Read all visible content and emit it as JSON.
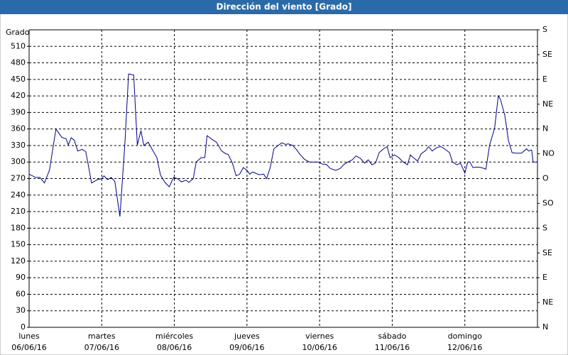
{
  "chart_data": {
    "type": "line",
    "title": "Dirección del viento [Grado]",
    "y_label": "Grado",
    "xlim": [
      0,
      7
    ],
    "xticks": [
      {
        "value": 0,
        "label": "lunes"
      },
      {
        "value": 1,
        "label": "martes"
      },
      {
        "value": 2,
        "label": "miércoles"
      },
      {
        "value": 3,
        "label": "jueves"
      },
      {
        "value": 4,
        "label": "viernes"
      },
      {
        "value": 5,
        "label": "sábado"
      },
      {
        "value": 6,
        "label": "domingo"
      }
    ],
    "xtick_dates": [
      "06/06/16",
      "07/06/16",
      "08/06/16",
      "09/06/16",
      "10/06/16",
      "11/06/16",
      "12/06/16"
    ],
    "ylim": [
      0,
      540
    ],
    "yticks": [
      0,
      30,
      60,
      90,
      120,
      150,
      180,
      210,
      240,
      270,
      300,
      330,
      360,
      390,
      420,
      450,
      480,
      510
    ],
    "y2lim": [
      0,
      540
    ],
    "y2ticks": [
      {
        "value": 0,
        "label": "N"
      },
      {
        "value": 45,
        "label": "NE"
      },
      {
        "value": 90,
        "label": "E"
      },
      {
        "value": 135,
        "label": "SE"
      },
      {
        "value": 180,
        "label": "S"
      },
      {
        "value": 225,
        "label": "SO"
      },
      {
        "value": 270,
        "label": "O"
      },
      {
        "value": 315,
        "label": "NO"
      },
      {
        "value": 360,
        "label": "N"
      },
      {
        "value": 405,
        "label": "NE"
      },
      {
        "value": 450,
        "label": "E"
      },
      {
        "value": 495,
        "label": "SE"
      },
      {
        "value": 540,
        "label": "S"
      }
    ],
    "grid": true,
    "series": [
      {
        "color": "#00008b",
        "x": [
          0,
          0.09,
          0.15,
          0.21,
          0.28,
          0.37,
          0.45,
          0.51,
          0.54,
          0.58,
          0.62,
          0.67,
          0.73,
          0.78,
          0.86,
          0.94,
          1.0,
          1.03,
          1.08,
          1.13,
          1.18,
          1.25,
          1.32,
          1.37,
          1.44,
          1.49,
          1.54,
          1.58,
          1.64,
          1.69,
          1.76,
          1.81,
          1.87,
          1.93,
          1.99,
          2.04,
          2.1,
          2.16,
          2.2,
          2.26,
          2.3,
          2.37,
          2.42,
          2.45,
          2.53,
          2.58,
          2.65,
          2.71,
          2.74,
          2.8,
          2.85,
          2.9,
          2.95,
          3.0,
          3.04,
          3.08,
          3.13,
          3.17,
          3.23,
          3.27,
          3.32,
          3.37,
          3.43,
          3.48,
          3.53,
          3.57,
          3.63,
          3.68,
          3.73,
          3.79,
          3.86,
          3.93,
          3.99,
          4.04,
          4.09,
          4.15,
          4.22,
          4.28,
          4.34,
          4.39,
          4.45,
          4.5,
          4.56,
          4.62,
          4.67,
          4.72,
          4.77,
          4.82,
          4.88,
          4.93,
          4.97,
          5.03,
          5.09,
          5.15,
          5.21,
          5.25,
          5.29,
          5.35,
          5.4,
          5.46,
          5.5,
          5.55,
          5.6,
          5.63,
          5.67,
          5.73,
          5.79,
          5.83,
          5.89,
          5.94,
          6.0,
          6.04,
          6.07,
          6.11,
          6.17,
          6.23,
          6.29,
          6.34,
          6.41,
          6.46,
          6.49,
          6.55,
          6.6,
          6.65,
          6.71,
          6.78,
          6.85,
          6.88,
          6.92,
          6.94,
          6.99
        ],
        "values": [
          278,
          272,
          272,
          262,
          285,
          360,
          345,
          342,
          331,
          344,
          340,
          320,
          323,
          319,
          262,
          268,
          270,
          275,
          268,
          272,
          265,
          201,
          336,
          460,
          458,
          331,
          357,
          330,
          336,
          324,
          308,
          276,
          263,
          255,
          272,
          270,
          264,
          267,
          263,
          270,
          300,
          308,
          308,
          348,
          340,
          336,
          320,
          315,
          314,
          298,
          275,
          278,
          290,
          285,
          278,
          282,
          279,
          277,
          278,
          270,
          290,
          324,
          330,
          335,
          332,
          333,
          330,
          323,
          314,
          305,
          300,
          300,
          300,
          296,
          296,
          288,
          285,
          288,
          296,
          300,
          304,
          311,
          307,
          298,
          304,
          295,
          298,
          317,
          324,
          328,
          308,
          313,
          308,
          300,
          295,
          313,
          308,
          302,
          315,
          321,
          328,
          320,
          325,
          327,
          328,
          323,
          317,
          300,
          295,
          298,
          280,
          300,
          300,
          290,
          291,
          290,
          287,
          330,
          362,
          420,
          414,
          385,
          339,
          317,
          316,
          316,
          324,
          320,
          322,
          300,
          300
        ]
      }
    ]
  }
}
